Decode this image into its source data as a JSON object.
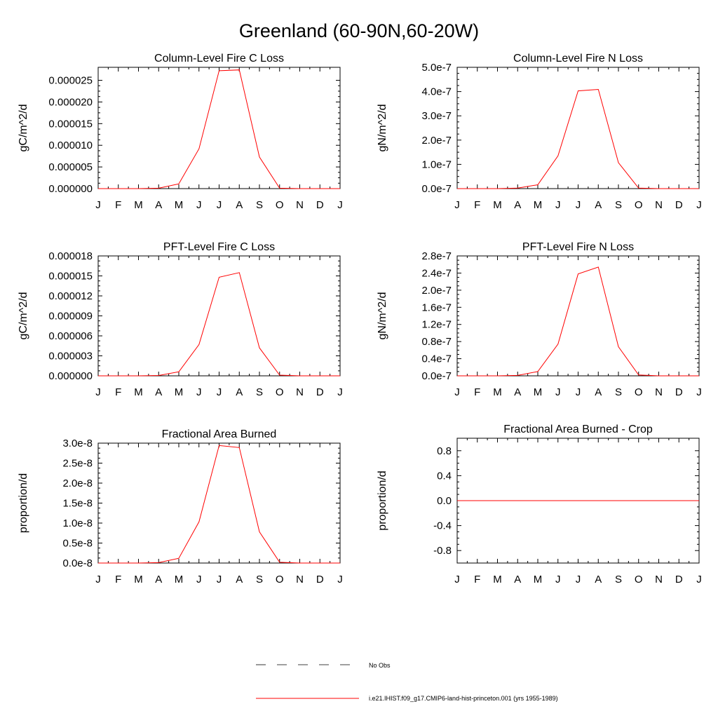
{
  "figure": {
    "title": "Greenland (60-90N,60-20W)",
    "legend": [
      {
        "label": "No Obs",
        "style": "dashed",
        "color": "#000000"
      },
      {
        "label": "i.e21.IHIST.f09_g17.CMIP6-land-hist-princeton.001 (yrs 1955-1989)",
        "style": "solid",
        "color": "#ff0000"
      }
    ]
  },
  "chart_data": [
    {
      "type": "line",
      "title": "Column-Level Fire C Loss",
      "ylabel": "gC/m^2/d",
      "categories": [
        "J",
        "F",
        "M",
        "A",
        "M",
        "J",
        "J",
        "A",
        "S",
        "O",
        "N",
        "D",
        "J"
      ],
      "ylim": [
        0,
        2.8e-05
      ],
      "yticks": [
        0,
        5e-06,
        1e-05,
        1.5e-05,
        2e-05,
        2.5e-05
      ],
      "ytick_labels": [
        "0.000000",
        "0.000005",
        "0.000010",
        "0.000015",
        "0.000020",
        "0.000025"
      ],
      "series": [
        {
          "color": "#ff0000",
          "values": [
            0,
            0,
            0,
            1e-07,
            1.1e-06,
            9.2e-06,
            2.72e-05,
            2.74e-05,
            7.3e-06,
            1e-07,
            0,
            0,
            0
          ]
        }
      ]
    },
    {
      "type": "line",
      "title": "Column-Level Fire N Loss",
      "ylabel": "gN/m^2/d",
      "categories": [
        "J",
        "F",
        "M",
        "A",
        "M",
        "J",
        "J",
        "A",
        "S",
        "O",
        "N",
        "D",
        "J"
      ],
      "ylim": [
        0,
        5e-07
      ],
      "yticks": [
        0,
        1e-07,
        2e-07,
        3e-07,
        4e-07,
        5e-07
      ],
      "ytick_labels": [
        "0.0e-7",
        "1.0e-7",
        "2.0e-7",
        "3.0e-7",
        "4.0e-7",
        "5.0e-7"
      ],
      "series": [
        {
          "color": "#ff0000",
          "values": [
            0,
            0,
            0,
            2e-09,
            1.6e-08,
            1.35e-07,
            4.03e-07,
            4.09e-07,
            1.07e-07,
            2e-09,
            0,
            0,
            0
          ]
        }
      ]
    },
    {
      "type": "line",
      "title": "PFT-Level Fire C Loss",
      "ylabel": "gC/m^2/d",
      "categories": [
        "J",
        "F",
        "M",
        "A",
        "M",
        "J",
        "J",
        "A",
        "S",
        "O",
        "N",
        "D",
        "J"
      ],
      "ylim": [
        0,
        1.8e-05
      ],
      "yticks": [
        0,
        3e-06,
        6e-06,
        9e-06,
        1.2e-05,
        1.5e-05,
        1.8e-05
      ],
      "ytick_labels": [
        "0.000000",
        "0.000003",
        "0.000006",
        "0.000009",
        "0.000012",
        "0.000015",
        "0.000018"
      ],
      "series": [
        {
          "color": "#ff0000",
          "values": [
            0,
            0,
            0,
            5e-08,
            6e-07,
            4.7e-06,
            1.48e-05,
            1.55e-05,
            4.2e-06,
            1e-07,
            0,
            0,
            0
          ]
        }
      ]
    },
    {
      "type": "line",
      "title": "PFT-Level Fire N Loss",
      "ylabel": "gN/m^2/d",
      "categories": [
        "J",
        "F",
        "M",
        "A",
        "M",
        "J",
        "J",
        "A",
        "S",
        "O",
        "N",
        "D",
        "J"
      ],
      "ylim": [
        0,
        2.8e-07
      ],
      "yticks": [
        0,
        4e-08,
        8e-08,
        1.2e-07,
        1.6e-07,
        2e-07,
        2.4e-07,
        2.8e-07
      ],
      "ytick_labels": [
        "0.0e-7",
        "0.4e-7",
        "0.8e-7",
        "1.2e-7",
        "1.6e-7",
        "2.0e-7",
        "2.4e-7",
        "2.8e-7"
      ],
      "series": [
        {
          "color": "#ff0000",
          "values": [
            0,
            0,
            0,
            1e-09,
            1e-08,
            7.4e-08,
            2.38e-07,
            2.54e-07,
            6.8e-08,
            2e-09,
            0,
            0,
            0
          ]
        }
      ]
    },
    {
      "type": "line",
      "title": "Fractional Area Burned",
      "ylabel": "proportion/d",
      "categories": [
        "J",
        "F",
        "M",
        "A",
        "M",
        "J",
        "J",
        "A",
        "S",
        "O",
        "N",
        "D",
        "J"
      ],
      "ylim": [
        0,
        3e-08
      ],
      "yticks": [
        0,
        5e-09,
        1e-08,
        1.5e-08,
        2e-08,
        2.5e-08,
        3e-08
      ],
      "ytick_labels": [
        "0.0e-8",
        "0.5e-8",
        "1.0e-8",
        "1.5e-8",
        "2.0e-8",
        "2.5e-8",
        "3.0e-8"
      ],
      "series": [
        {
          "color": "#ff0000",
          "values": [
            0,
            0,
            0,
            1e-10,
            1.2e-09,
            1.03e-08,
            2.94e-08,
            2.89e-08,
            7.8e-09,
            2e-10,
            0,
            0,
            0
          ]
        }
      ]
    },
    {
      "type": "line",
      "title": "Fractional Area Burned - Crop",
      "ylabel": "proportion/d",
      "categories": [
        "J",
        "F",
        "M",
        "A",
        "M",
        "J",
        "J",
        "A",
        "S",
        "O",
        "N",
        "D",
        "J"
      ],
      "ylim": [
        -1.0,
        1.0
      ],
      "yticks": [
        -0.8,
        -0.4,
        0.0,
        0.4,
        0.8
      ],
      "ytick_labels": [
        "-0.8",
        "-0.4",
        "0.0",
        "0.4",
        "0.8"
      ],
      "series": [
        {
          "color": "#ff0000",
          "values": [
            0,
            0,
            0,
            0,
            0,
            0,
            0,
            0,
            0,
            0,
            0,
            0,
            0
          ]
        }
      ]
    }
  ]
}
